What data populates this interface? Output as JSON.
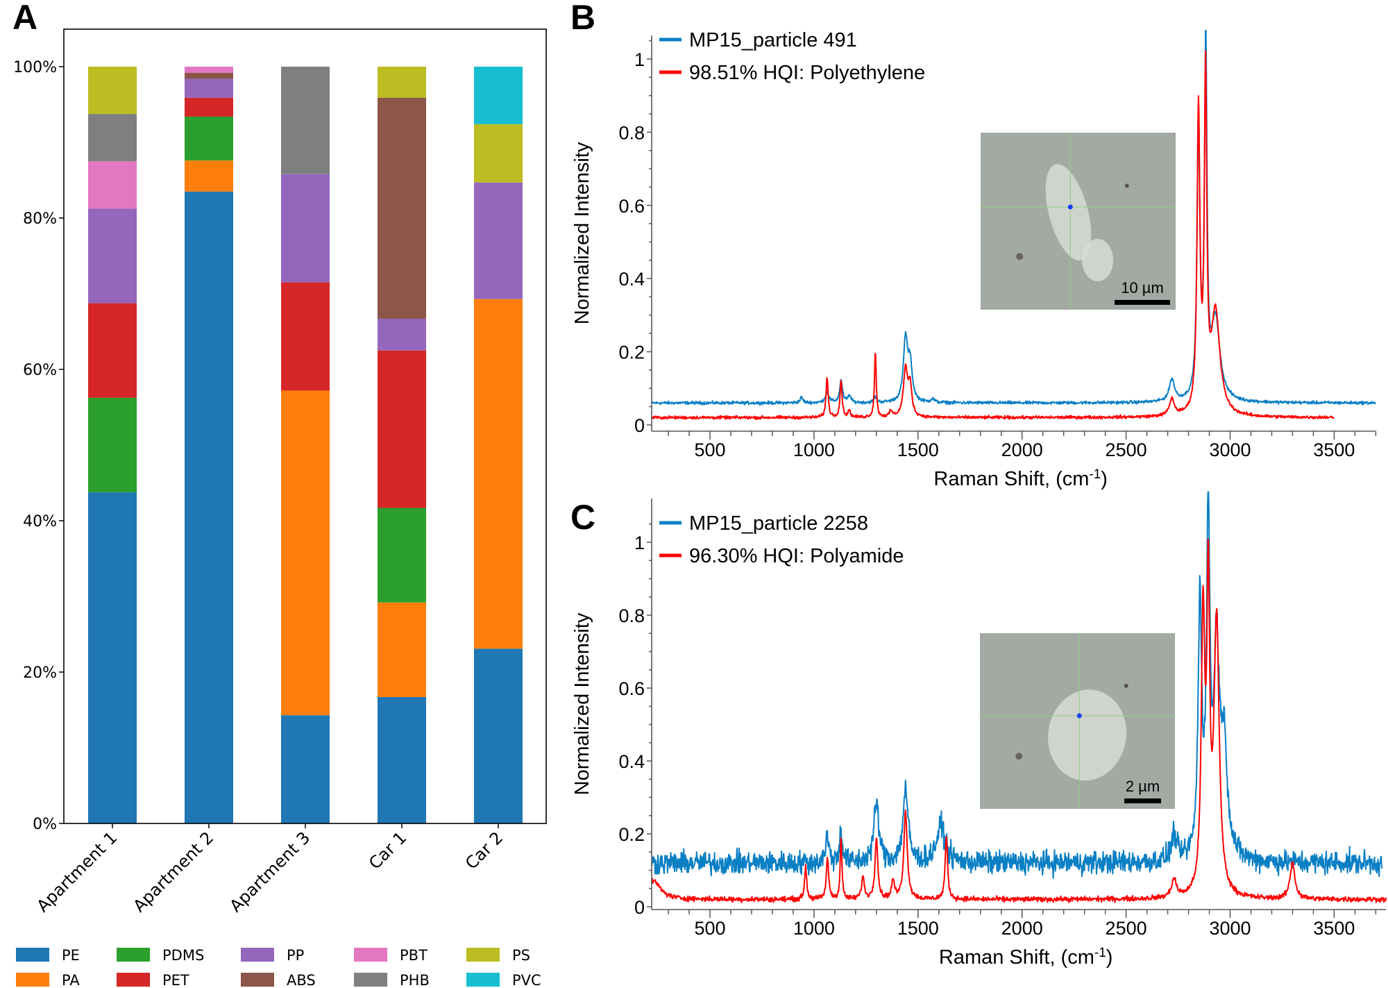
{
  "panels": {
    "a": "A",
    "b": "B",
    "c": "C"
  },
  "chart_data": [
    {
      "type": "bar",
      "stacked": true,
      "categories": [
        "Apartment 1",
        "Apartment 2",
        "Apartment 3",
        "Car 1",
        "Car 2"
      ],
      "ylim": [
        0,
        100
      ],
      "yticks": [
        0,
        20,
        40,
        60,
        80,
        100
      ],
      "ytick_labels": [
        "0%",
        "20%",
        "40%",
        "60%",
        "80%",
        "100%"
      ],
      "legend": "bottom",
      "series": [
        {
          "name": "PE",
          "color": "#1f77b4",
          "values": [
            43.75,
            83.5,
            14.3,
            16.7,
            23.1
          ]
        },
        {
          "name": "PA",
          "color": "#ff7f0e",
          "values": [
            0,
            4.1,
            42.9,
            12.5,
            46.2
          ]
        },
        {
          "name": "PDMS",
          "color": "#2ca02c",
          "values": [
            12.5,
            5.8,
            0,
            12.5,
            0
          ]
        },
        {
          "name": "PET",
          "color": "#d62728",
          "values": [
            12.5,
            2.5,
            14.3,
            20.8,
            0
          ]
        },
        {
          "name": "PP",
          "color": "#9467bd",
          "values": [
            12.5,
            2.5,
            14.3,
            4.2,
            15.4
          ]
        },
        {
          "name": "ABS",
          "color": "#8c564b",
          "values": [
            0,
            0.8,
            0,
            29.2,
            0
          ]
        },
        {
          "name": "PBT",
          "color": "#e377c2",
          "values": [
            6.25,
            0.8,
            0,
            0,
            0
          ]
        },
        {
          "name": "PHB",
          "color": "#7f7f7f",
          "values": [
            6.25,
            0,
            14.2,
            0,
            0
          ]
        },
        {
          "name": "PS",
          "color": "#bcbd22",
          "values": [
            6.25,
            0,
            0,
            4.1,
            7.7
          ]
        },
        {
          "name": "PVC",
          "color": "#17becf",
          "values": [
            0,
            0,
            0,
            0,
            7.6
          ]
        }
      ]
    },
    {
      "type": "line",
      "xlabel": "Raman Shift, (cm",
      "xlabel_sup": "-1",
      "xlabel_end": ")",
      "ylabel": "Normalized Intensity",
      "xlim": [
        220,
        3700
      ],
      "ylim": [
        0,
        1.07
      ],
      "xticks": [
        500,
        1000,
        1500,
        2000,
        2500,
        3000,
        3500
      ],
      "yticks": [
        0,
        0.2,
        0.4,
        0.6,
        0.8,
        1
      ],
      "ytick_labels": [
        "0",
        "0.2",
        "0.4",
        "0.6",
        "0.8",
        "1"
      ],
      "legend": "top-left",
      "inset_scale_bar": "10 µm",
      "series": [
        {
          "name": "MP15_particle 491",
          "color": "#0a7fc4",
          "x_range": [
            220,
            3700
          ],
          "baseline": 0.06,
          "noise": 0.003,
          "peaks": [
            [
              940,
              0.015,
              8
            ],
            [
              1063,
              0.03,
              10
            ],
            [
              1130,
              0.06,
              8
            ],
            [
              1170,
              0.02,
              8
            ],
            [
              1295,
              0.015,
              8
            ],
            [
              1440,
              0.17,
              12
            ],
            [
              1462,
              0.1,
              12
            ],
            [
              1570,
              0.01,
              10
            ],
            [
              2720,
              0.06,
              15
            ],
            [
              2848,
              0.75,
              8
            ],
            [
              2883,
              0.95,
              7
            ],
            [
              2930,
              0.22,
              25
            ]
          ]
        },
        {
          "name": "98.51% HQI: Polyethylene",
          "color": "#ff0000",
          "x_range": [
            220,
            3500
          ],
          "baseline": 0.02,
          "noise": 0.003,
          "peaks": [
            [
              1063,
              0.11,
              6
            ],
            [
              1130,
              0.1,
              6
            ],
            [
              1170,
              0.02,
              6
            ],
            [
              1295,
              0.18,
              5
            ],
            [
              1370,
              0.015,
              8
            ],
            [
              1440,
              0.13,
              12
            ],
            [
              1462,
              0.08,
              10
            ],
            [
              2720,
              0.045,
              14
            ],
            [
              2848,
              0.82,
              8
            ],
            [
              2882,
              0.9,
              7
            ],
            [
              2930,
              0.28,
              25
            ]
          ]
        }
      ]
    },
    {
      "type": "line",
      "xlabel": "Raman Shift, (cm",
      "xlabel_sup": "-1",
      "xlabel_end": ")",
      "ylabel": "Normalized Intensity",
      "xlim": [
        220,
        3750
      ],
      "ylim": [
        0,
        1.1
      ],
      "xticks": [
        500,
        1000,
        1500,
        2000,
        2500,
        3000,
        3500
      ],
      "yticks": [
        0,
        0.2,
        0.4,
        0.6,
        0.8,
        1
      ],
      "ytick_labels": [
        "0",
        "0.2",
        "0.4",
        "0.6",
        "0.8",
        "1"
      ],
      "legend": "top-left",
      "inset_scale_bar": "2 µm",
      "series": [
        {
          "name": "MP15_particle 2258",
          "color": "#0a7fc4",
          "x_range": [
            220,
            3730
          ],
          "baseline": 0.12,
          "noise": 0.022,
          "peaks": [
            [
              1063,
              0.07,
              10
            ],
            [
              1130,
              0.09,
              8
            ],
            [
              1300,
              0.16,
              15
            ],
            [
              1440,
              0.2,
              15
            ],
            [
              1610,
              0.1,
              25
            ],
            [
              2730,
              0.07,
              15
            ],
            [
              2855,
              0.7,
              10
            ],
            [
              2895,
              0.9,
              10
            ],
            [
              2935,
              0.55,
              15
            ],
            [
              2970,
              0.3,
              20
            ]
          ]
        },
        {
          "name": "96.30% HQI: Polyamide",
          "color": "#ff0000",
          "x_range": [
            220,
            3750
          ],
          "baseline": 0.02,
          "noise": 0.005,
          "peaks": [
            [
              230,
              0.05,
              40
            ],
            [
              960,
              0.09,
              6
            ],
            [
              1065,
              0.11,
              7
            ],
            [
              1130,
              0.17,
              5
            ],
            [
              1235,
              0.06,
              8
            ],
            [
              1300,
              0.17,
              8
            ],
            [
              1380,
              0.05,
              8
            ],
            [
              1440,
              0.24,
              10
            ],
            [
              1636,
              0.17,
              7
            ],
            [
              2730,
              0.05,
              14
            ],
            [
              2870,
              0.75,
              10
            ],
            [
              2895,
              0.8,
              8
            ],
            [
              2935,
              0.75,
              15
            ],
            [
              3300,
              0.1,
              14
            ]
          ]
        }
      ]
    }
  ]
}
